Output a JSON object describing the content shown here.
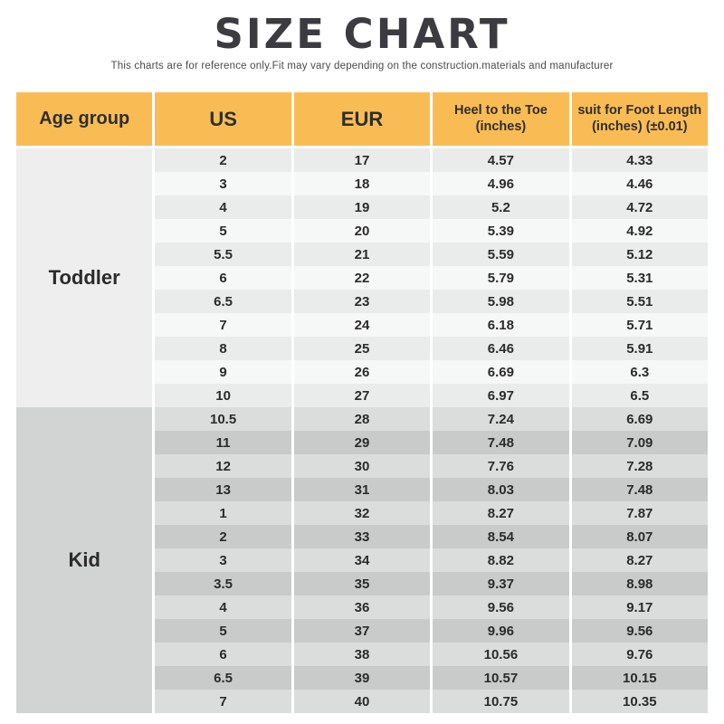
{
  "page": {
    "title": "SIZE CHART",
    "subtitle": "This charts are for reference only.Fit may vary depending on the construction.materials and manufacturer"
  },
  "colors": {
    "header_bg": "#f9bc55",
    "header_text": "#2e2e2e",
    "text": "#2b2b2b",
    "title_text": "#3b3b40",
    "toddler_label_bg": "#eeeeee",
    "toddler_row_odd": "#eaebeb",
    "toddler_row_even": "#f6f7f7",
    "kid_label_bg": "#d2d3d3",
    "kid_row_odd": "#dbdcdc",
    "kid_row_even": "#c9cbcb"
  },
  "header": {
    "columns": [
      {
        "label": "Age group",
        "sub": ""
      },
      {
        "label": "US",
        "sub": ""
      },
      {
        "label": "EUR",
        "sub": ""
      },
      {
        "label": "Heel to the Toe",
        "sub": "(inches)"
      },
      {
        "label": "suit for Foot Length",
        "sub": "(inches) (±0.01)"
      }
    ]
  },
  "chart_data": {
    "type": "table",
    "title": "SIZE CHART",
    "columns": [
      "Age group",
      "US",
      "EUR",
      "Heel to the Toe (inches)",
      "suit for Foot Length (inches) (±0.01)"
    ],
    "sections": [
      {
        "age_group": "Toddler",
        "rows": [
          [
            "2",
            "17",
            "4.57",
            "4.33"
          ],
          [
            "3",
            "18",
            "4.96",
            "4.46"
          ],
          [
            "4",
            "19",
            "5.2",
            "4.72"
          ],
          [
            "5",
            "20",
            "5.39",
            "4.92"
          ],
          [
            "5.5",
            "21",
            "5.59",
            "5.12"
          ],
          [
            "6",
            "22",
            "5.79",
            "5.31"
          ],
          [
            "6.5",
            "23",
            "5.98",
            "5.51"
          ],
          [
            "7",
            "24",
            "6.18",
            "5.71"
          ],
          [
            "8",
            "25",
            "6.46",
            "5.91"
          ],
          [
            "9",
            "26",
            "6.69",
            "6.3"
          ],
          [
            "10",
            "27",
            "6.97",
            "6.5"
          ]
        ]
      },
      {
        "age_group": "Kid",
        "rows": [
          [
            "10.5",
            "28",
            "7.24",
            "6.69"
          ],
          [
            "11",
            "29",
            "7.48",
            "7.09"
          ],
          [
            "12",
            "30",
            "7.76",
            "7.28"
          ],
          [
            "13",
            "31",
            "8.03",
            "7.48"
          ],
          [
            "1",
            "32",
            "8.27",
            "7.87"
          ],
          [
            "2",
            "33",
            "8.54",
            "8.07"
          ],
          [
            "3",
            "34",
            "8.82",
            "8.27"
          ],
          [
            "3.5",
            "35",
            "9.37",
            "8.98"
          ],
          [
            "4",
            "36",
            "9.56",
            "9.17"
          ],
          [
            "5",
            "37",
            "9.96",
            "9.56"
          ],
          [
            "6",
            "38",
            "10.56",
            "9.76"
          ],
          [
            "6.5",
            "39",
            "10.57",
            "10.15"
          ],
          [
            "7",
            "40",
            "10.75",
            "10.35"
          ]
        ]
      }
    ]
  }
}
